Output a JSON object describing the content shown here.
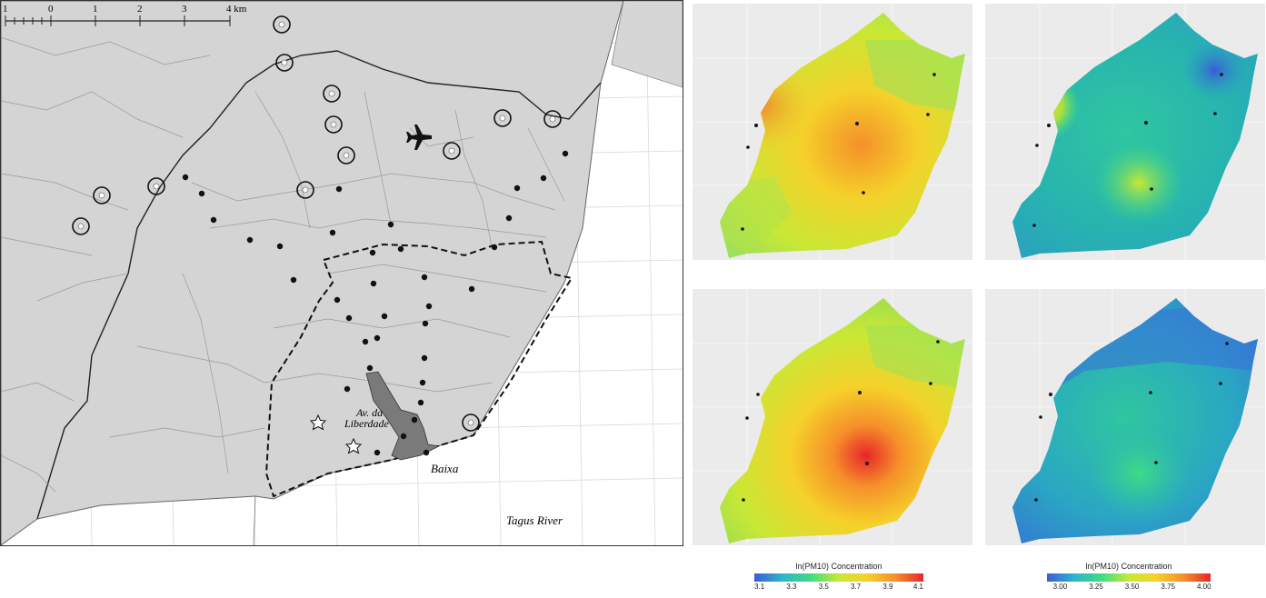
{
  "map": {
    "scale_labels": [
      "1",
      "0",
      "1",
      "2",
      "3",
      "4 km"
    ],
    "labels": {
      "avenue_line1": "Av. da",
      "avenue_line2": "Liberdade",
      "baixa": "Baixa",
      "river": "Tagus River"
    },
    "icons": [
      "airplane-icon",
      "star-icon",
      "monitoring-station-ring",
      "sampling-point-dot"
    ]
  },
  "legends": [
    {
      "title": "ln(PM10) Concentration",
      "ticks": [
        "3.1",
        "3.3",
        "3.5",
        "3.7",
        "3.9",
        "4.1"
      ],
      "gradient": [
        "#3b5bdb",
        "#2fb5c9",
        "#3ddc84",
        "#c8e835",
        "#f5d12a",
        "#f5902a",
        "#e8262a"
      ]
    },
    {
      "title": "ln(PM10) Concentration",
      "ticks": [
        "3.00",
        "3.25",
        "3.50",
        "3.75",
        "4.00"
      ],
      "gradient": [
        "#3b5bdb",
        "#2fb5c9",
        "#3ddc84",
        "#c8e835",
        "#f5d12a",
        "#f5902a",
        "#e8262a"
      ]
    }
  ]
}
